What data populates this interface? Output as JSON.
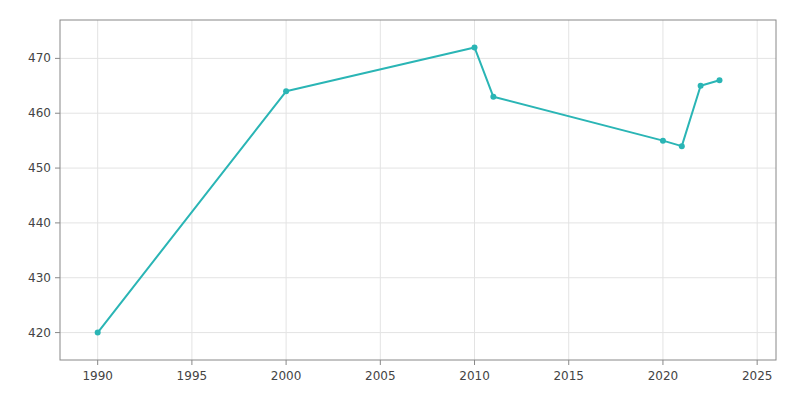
{
  "chart_data": {
    "type": "line",
    "x": [
      1990,
      2000,
      2010,
      2011,
      2020,
      2021,
      2022,
      2023
    ],
    "values": [
      420,
      464,
      472,
      463,
      455,
      454,
      465,
      466
    ],
    "color": "#2ab5b5",
    "marker": "circle",
    "xlim": [
      1988,
      2026
    ],
    "ylim": [
      415,
      477
    ],
    "xticks": [
      1990,
      1995,
      2000,
      2005,
      2010,
      2015,
      2020,
      2025
    ],
    "yticks": [
      420,
      430,
      440,
      450,
      460,
      470
    ],
    "grid": true
  }
}
